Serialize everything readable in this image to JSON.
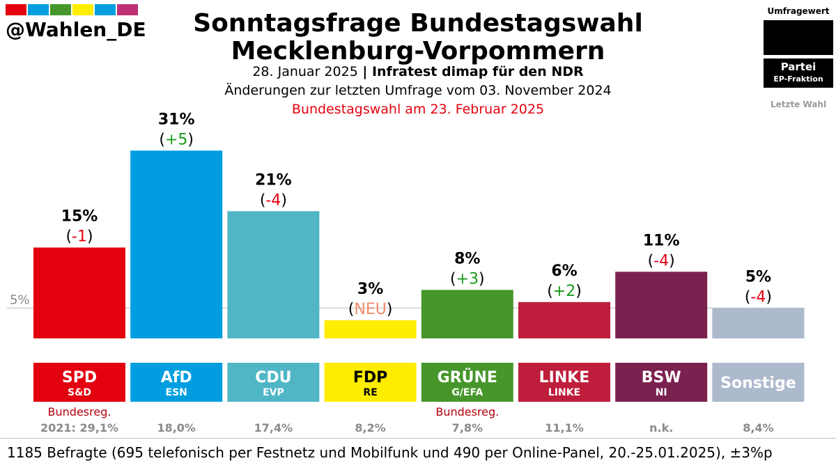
{
  "account": "@Wahlen_DE",
  "brand_stripes": [
    "#e3000f",
    "#009ee0",
    "#46962b",
    "#ffed00",
    "#009ee0",
    "#be3075"
  ],
  "title_line1": "Sonntagsfrage Bundestagswahl",
  "title_line2": "Mecklenburg-Vorpommern",
  "subtitle": {
    "date": "28. Januar 2025",
    "separator": " | ",
    "institute": "Infratest dimap für den NDR"
  },
  "changes_note": "Änderungen zur letzten Umfrage vom 03. November 2024",
  "election_note": "Bundestagswahl am 23. Februar 2025",
  "legend": {
    "header": "Umfragewert",
    "party": "Partei",
    "faction": "EP-Fraktion",
    "last": "Letzte Wahl"
  },
  "chart_data": {
    "type": "bar",
    "threshold_label": "5%",
    "threshold_value": 5,
    "ylim": [
      0,
      31
    ],
    "bars": [
      {
        "party": "SPD",
        "faction": "S&D",
        "value": 15,
        "value_label": "15%",
        "change": "-1",
        "change_color": "#e3000f",
        "color": "#e3000f",
        "text_color": "#ffffff",
        "note": "Bundesreg.",
        "last": "2021: 29,1%"
      },
      {
        "party": "AfD",
        "faction": "ESN",
        "value": 31,
        "value_label": "31%",
        "change": "+5",
        "change_color": "#1a9a1a",
        "color": "#009ee0",
        "text_color": "#ffffff",
        "note": "",
        "last": "18,0%"
      },
      {
        "party": "CDU",
        "faction": "EVP",
        "value": 21,
        "value_label": "21%",
        "change": "-4",
        "change_color": "#e3000f",
        "color": "#50b6c6",
        "text_color": "#ffffff",
        "note": "",
        "last": "17,4%"
      },
      {
        "party": "FDP",
        "faction": "RE",
        "value": 3,
        "value_label": "3%",
        "change": "NEU",
        "change_color": "#f08c6a",
        "color": "#ffed00",
        "text_color": "#000000",
        "note": "",
        "last": "8,2%"
      },
      {
        "party": "GRÜNE",
        "faction": "G/EFA",
        "value": 8,
        "value_label": "8%",
        "change": "+3",
        "change_color": "#1a9a1a",
        "color": "#46962b",
        "text_color": "#ffffff",
        "note": "Bundesreg.",
        "last": "7,8%"
      },
      {
        "party": "LINKE",
        "faction": "LINKE",
        "value": 6,
        "value_label": "6%",
        "change": "+2",
        "change_color": "#1a9a1a",
        "color": "#be1e3c",
        "text_color": "#ffffff",
        "note": "",
        "last": "11,1%"
      },
      {
        "party": "BSW",
        "faction": "NI",
        "value": 11,
        "value_label": "11%",
        "change": "-4",
        "change_color": "#e3000f",
        "color": "#7b2150",
        "text_color": "#ffffff",
        "note": "",
        "last": "n.k."
      },
      {
        "party": "Sonstige",
        "faction": "",
        "value": 5,
        "value_label": "5%",
        "change": "-4",
        "change_color": "#e3000f",
        "color": "#adb9cc",
        "text_color": "#ffffff",
        "note": "",
        "last": "8,4%"
      }
    ]
  },
  "footer": "1185 Befragte (695 telefonisch per Festnetz und Mobilfunk und 490 per Online-Panel, 20.-25.01.2025), ±3%p"
}
